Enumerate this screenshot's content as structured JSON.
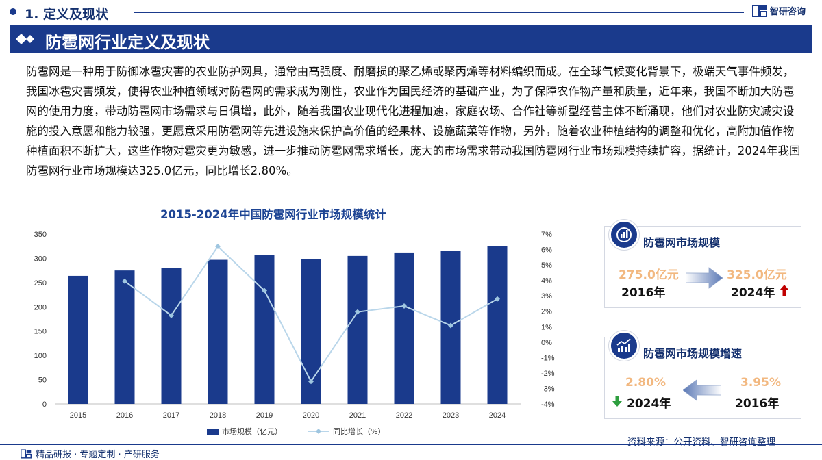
{
  "header": {
    "section_title": "1. 定义及现状",
    "logo_text": "智研咨询"
  },
  "banner": {
    "title": "防雹网行业定义及现状"
  },
  "paragraph": "防雹网是一种用于防御冰雹灾害的农业防护网具，通常由高强度、耐磨损的聚乙烯或聚丙烯等材料编织而成。在全球气候变化背景下，极端天气事件频发，我国冰雹灾害频发，使得农业种植领域对防雹网的需求成为刚性，农业作为国民经济的基础产业，为了保障农作物产量和质量，近年来，我国不断加大防雹网的使用力度，带动防雹网市场需求与日俱增，此外，随着我国农业现代化进程加速，家庭农场、合作社等新型经营主体不断涌现，他们对农业防灾减灾设施的投入意愿和能力较强，更愿意采用防雹网等先进设施来保护高价值的经果林、设施蔬菜等作物，另外，随着农业种植结构的调整和优化，高附加值作物种植面积不断扩大，这些作物对雹灾更为敏感，进一步推动防雹网需求增长，庞大的市场需求带动我国防雹网行业市场规模持续扩容，据统计，2024年我国防雹网行业市场规模达325.0亿元，同比增长2.80%。",
  "chart_data": {
    "type": "bar",
    "title": "2015-2024年中国防雹网行业市场规模统计",
    "categories": [
      "2015",
      "2016",
      "2017",
      "2018",
      "2019",
      "2020",
      "2021",
      "2022",
      "2023",
      "2024"
    ],
    "series": [
      {
        "name": "市场规模（亿元）",
        "type": "bar",
        "axis": "left",
        "color": "#1a3a8c",
        "values": [
          264.0,
          275.0,
          280.0,
          297.0,
          307.0,
          299.0,
          305.0,
          312.0,
          316.0,
          325.0
        ]
      },
      {
        "name": "同比增长（%）",
        "type": "line",
        "axis": "right",
        "color": "#b9d6ea",
        "values": [
          null,
          3.95,
          1.73,
          6.2,
          3.34,
          -2.55,
          1.96,
          2.34,
          1.08,
          2.8
        ]
      }
    ],
    "left_axis": {
      "ylim": [
        0,
        350
      ],
      "ticks": [
        "0",
        "50",
        "100",
        "150",
        "200",
        "250",
        "300",
        "350"
      ]
    },
    "right_axis": {
      "ylim": [
        -4,
        7
      ],
      "ticks": [
        "-4%",
        "-3%",
        "-2%",
        "-1%",
        "0%",
        "1%",
        "2%",
        "3%",
        "4%",
        "5%",
        "6%",
        "7%"
      ]
    },
    "legend": {
      "position": "bottom"
    },
    "grid": false
  },
  "card_scale": {
    "title": "防雹网市场规模",
    "from_value": "275.0亿元",
    "from_year": "2016年",
    "to_value": "325.0亿元",
    "to_year": "2024年",
    "trend_icon": "up-arrow-icon",
    "trend_color": "#c00000"
  },
  "card_growth": {
    "title": "防雹网市场规模增速",
    "left_value": "2.80%",
    "left_year": "2024年",
    "right_value": "3.95%",
    "right_year": "2016年",
    "trend_icon": "down-arrow-icon",
    "trend_color": "#2e9e3e"
  },
  "footer": {
    "source": "资料来源：公开资料、智研咨询整理",
    "slogan": "精品研报 · 专题定制 · 产研服务"
  },
  "colors": {
    "brand_dark": "#1a3a8c",
    "accent_orange": "#f2b880"
  }
}
